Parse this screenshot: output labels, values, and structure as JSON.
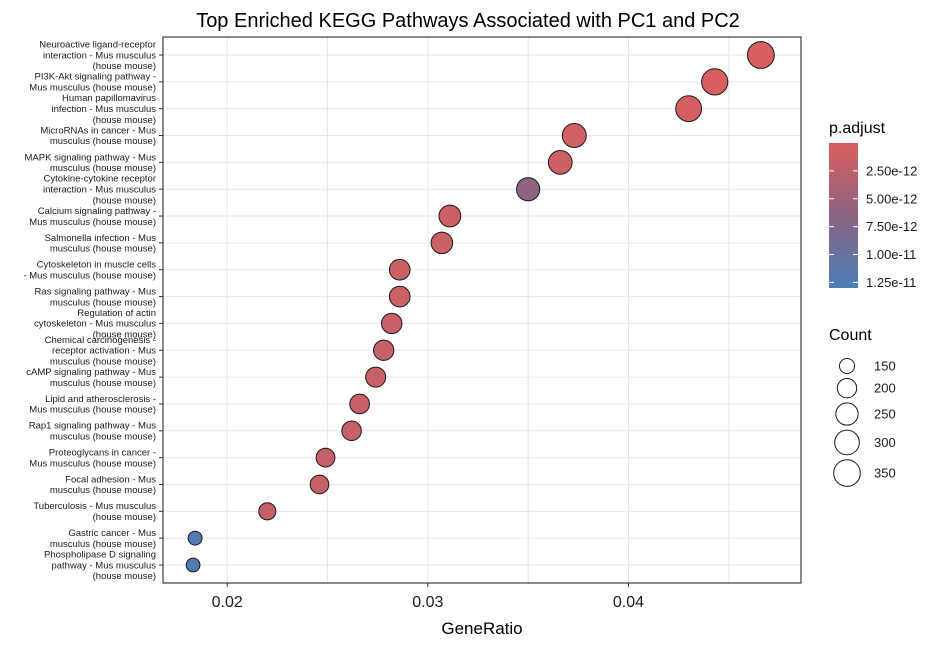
{
  "chart_data": {
    "type": "scatter",
    "title": "Top Enriched KEGG Pathways Associated with PC1 and PC2",
    "xlabel": "GeneRatio",
    "ylabel": "",
    "xlim": [
      0.0168,
      0.0486
    ],
    "xticks": [
      0.02,
      0.03,
      0.04
    ],
    "xtick_labels": [
      "0.02",
      "0.03",
      "0.04"
    ],
    "grid": true,
    "legend_position": "right",
    "color_legend": {
      "title": "p.adjust",
      "low_color": "#d95f5f",
      "high_color": "#4a7fb5",
      "range": [
        0,
        1.3e-11
      ],
      "ticks": [
        2.5e-12,
        5e-12,
        7.5e-12,
        1e-11,
        1.25e-11
      ],
      "tick_labels": [
        "2.50e-12",
        "5.00e-12",
        "7.50e-12",
        "1.00e-11",
        "1.25e-11"
      ]
    },
    "size_legend": {
      "title": "Count",
      "values": [
        150,
        200,
        250,
        300,
        350
      ],
      "labels": [
        "150",
        "200",
        "250",
        "300",
        "350"
      ]
    },
    "points": [
      {
        "label": "Neuroactive ligand-receptor interaction - Mus musculus (house mouse)",
        "gene_ratio": 0.0466,
        "count": 355,
        "p_adjust": 1e-13
      },
      {
        "label": "PI3K-Akt signaling pathway - Mus musculus (house mouse)",
        "gene_ratio": 0.0443,
        "count": 340,
        "p_adjust": 1e-13
      },
      {
        "label": "Human papillomavirus infection - Mus musculus (house mouse)",
        "gene_ratio": 0.043,
        "count": 330,
        "p_adjust": 5e-13
      },
      {
        "label": "MicroRNAs in cancer - Mus musculus (house mouse)",
        "gene_ratio": 0.0373,
        "count": 285,
        "p_adjust": 8e-13
      },
      {
        "label": "MAPK signaling pathway - Mus musculus (house mouse)",
        "gene_ratio": 0.0366,
        "count": 280,
        "p_adjust": 1e-12
      },
      {
        "label": "Cytokine-cytokine receptor interaction - Mus musculus (house mouse)",
        "gene_ratio": 0.035,
        "count": 268,
        "p_adjust": 6.2e-12
      },
      {
        "label": "Calcium signaling pathway - Mus musculus (house mouse)",
        "gene_ratio": 0.0311,
        "count": 240,
        "p_adjust": 1.2e-12
      },
      {
        "label": "Salmonella infection - Mus musculus (house mouse)",
        "gene_ratio": 0.0307,
        "count": 236,
        "p_adjust": 1.2e-12
      },
      {
        "label": "Cytoskeleton in muscle cells - Mus musculus (house mouse)",
        "gene_ratio": 0.0286,
        "count": 220,
        "p_adjust": 1.2e-12
      },
      {
        "label": "Ras signaling pathway - Mus musculus (house mouse)",
        "gene_ratio": 0.0286,
        "count": 220,
        "p_adjust": 1.2e-12
      },
      {
        "label": "Regulation of actin cytoskeleton - Mus musculus (house mouse)",
        "gene_ratio": 0.0282,
        "count": 217,
        "p_adjust": 1.4e-12
      },
      {
        "label": "Chemical carcinogenesis - receptor activation - Mus musculus (house mouse)",
        "gene_ratio": 0.0278,
        "count": 214,
        "p_adjust": 1.4e-12
      },
      {
        "label": "cAMP signaling pathway - Mus musculus (house mouse)",
        "gene_ratio": 0.0274,
        "count": 211,
        "p_adjust": 1.5e-12
      },
      {
        "label": "Lipid and atherosclerosis - Mus musculus (house mouse)",
        "gene_ratio": 0.0266,
        "count": 205,
        "p_adjust": 1.5e-12
      },
      {
        "label": "Rap1 signaling pathway - Mus musculus (house mouse)",
        "gene_ratio": 0.0262,
        "count": 202,
        "p_adjust": 1.5e-12
      },
      {
        "label": "Proteoglycans in cancer - Mus musculus (house mouse)",
        "gene_ratio": 0.0249,
        "count": 192,
        "p_adjust": 1.6e-12
      },
      {
        "label": "Focal adhesion - Mus musculus (house mouse)",
        "gene_ratio": 0.0246,
        "count": 190,
        "p_adjust": 1.6e-12
      },
      {
        "label": "Tuberculosis - Mus musculus (house mouse)",
        "gene_ratio": 0.022,
        "count": 170,
        "p_adjust": 1.7e-12
      },
      {
        "label": "Gastric cancer - Mus musculus (house mouse)",
        "gene_ratio": 0.0184,
        "count": 142,
        "p_adjust": 1.22e-11
      },
      {
        "label": "Phospholipase D signaling pathway - Mus musculus (house mouse)",
        "gene_ratio": 0.0183,
        "count": 141,
        "p_adjust": 1.25e-11
      }
    ],
    "ytick_lines": [
      [
        "Neuroactive ligand-receptor",
        "interaction - Mus musculus",
        "(house mouse)"
      ],
      [
        "PI3K-Akt signaling pathway -",
        "Mus musculus (house mouse)"
      ],
      [
        "Human papillomavirus",
        "infection - Mus musculus",
        "(house mouse)"
      ],
      [
        "MicroRNAs in cancer - Mus",
        "musculus (house mouse)"
      ],
      [
        "MAPK signaling pathway - Mus",
        "musculus (house mouse)"
      ],
      [
        "Cytokine-cytokine receptor",
        "interaction - Mus musculus",
        "(house mouse)"
      ],
      [
        "Calcium signaling pathway -",
        "Mus musculus (house mouse)"
      ],
      [
        "Salmonella infection - Mus",
        "musculus (house mouse)"
      ],
      [
        "Cytoskeleton in muscle cells",
        "- Mus musculus (house mouse)"
      ],
      [
        "Ras signaling pathway - Mus",
        "musculus (house mouse)"
      ],
      [
        "Regulation of actin",
        "cytoskeleton - Mus musculus",
        "(house mouse)"
      ],
      [
        "Chemical carcinogenesis -",
        "receptor activation - Mus",
        "musculus (house mouse)"
      ],
      [
        "cAMP signaling pathway - Mus",
        "musculus (house mouse)"
      ],
      [
        "Lipid and atherosclerosis -",
        "Mus musculus (house mouse)"
      ],
      [
        "Rap1 signaling pathway - Mus",
        "musculus (house mouse)"
      ],
      [
        "Proteoglycans in cancer -",
        "Mus musculus (house mouse)"
      ],
      [
        "Focal adhesion - Mus",
        "musculus (house mouse)"
      ],
      [
        "Tuberculosis - Mus musculus",
        "(house mouse)"
      ],
      [
        "Gastric cancer - Mus",
        "musculus (house mouse)"
      ],
      [
        "Phospholipase D signaling",
        "pathway - Mus musculus",
        "(house mouse)"
      ]
    ]
  }
}
